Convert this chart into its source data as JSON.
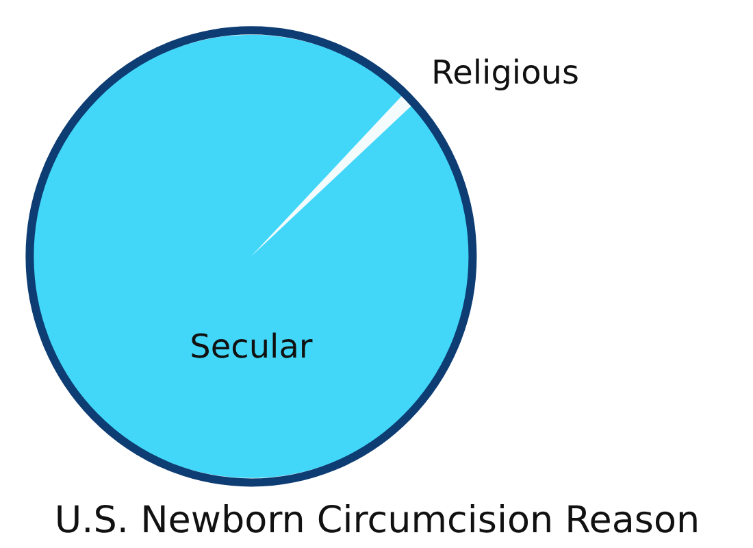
{
  "chart_data": {
    "type": "pie",
    "title": "U.S. Newborn Circumcision Reason",
    "categories": [
      "Religious",
      "Secular"
    ],
    "values": [
      1,
      99
    ],
    "colors": [
      "#f4fbfd",
      "#42d7f8"
    ]
  }
}
